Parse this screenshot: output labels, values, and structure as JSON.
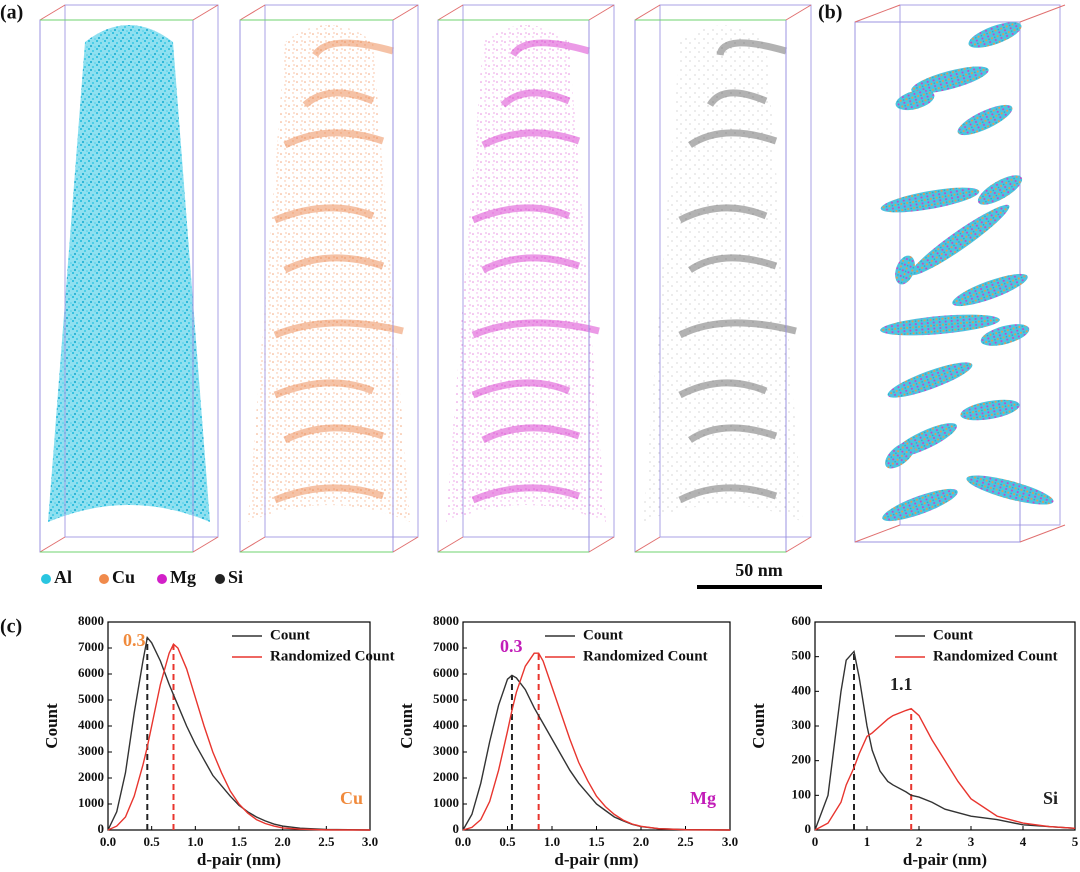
{
  "panel_labels": [
    "(a)",
    "(b)",
    "(c)"
  ],
  "element_legend": [
    {
      "name": "Al",
      "color": "#29c5e0"
    },
    {
      "name": "Cu",
      "color": "#f08a4b"
    },
    {
      "name": "Mg",
      "color": "#d21fc8"
    },
    {
      "name": "Si",
      "color": "#222222"
    }
  ],
  "scale_bar": "50 nm",
  "chart_data": [
    {
      "type": "line",
      "xlabel": "d-pair (nm)",
      "ylabel": "Count",
      "x": [
        0,
        0.1,
        0.2,
        0.3,
        0.4,
        0.45,
        0.5,
        0.6,
        0.7,
        0.75,
        0.8,
        0.9,
        1.0,
        1.1,
        1.2,
        1.3,
        1.4,
        1.5,
        1.6,
        1.7,
        1.8,
        1.9,
        2.0,
        2.2,
        2.5,
        3.0
      ],
      "series": [
        {
          "name": "Count",
          "color": "#333333",
          "values": [
            0,
            700,
            2200,
            4500,
            6500,
            7400,
            7200,
            6500,
            5600,
            5200,
            4800,
            4000,
            3300,
            2700,
            2100,
            1700,
            1300,
            950,
            700,
            500,
            350,
            230,
            150,
            70,
            20,
            0
          ]
        },
        {
          "name": "Randomized Count",
          "color": "#e8352e",
          "values": [
            0,
            150,
            500,
            1300,
            2500,
            3200,
            4000,
            5600,
            6800,
            7150,
            7000,
            6200,
            5100,
            4000,
            3000,
            2200,
            1500,
            1000,
            650,
            400,
            250,
            150,
            80,
            30,
            5,
            0
          ]
        }
      ],
      "xlim": [
        0,
        3
      ],
      "ylim": [
        0,
        8000
      ],
      "xticks": [
        {
          "value": 0,
          "label": "0.0"
        },
        0.5,
        {
          "value": 1,
          "label": "1.0"
        },
        1.5,
        {
          "value": 2,
          "label": "2.0"
        },
        2.5,
        {
          "value": 3,
          "label": "3.0"
        }
      ],
      "yticks": [
        0,
        1000,
        2000,
        3000,
        4000,
        5000,
        6000,
        7000,
        8000
      ],
      "vlines": [
        {
          "x": 0.45,
          "y": 7400,
          "color": "#222222"
        },
        {
          "x": 0.75,
          "y": 7150,
          "color": "#e8352e"
        }
      ],
      "annotations": [
        {
          "text": "0.3",
          "color": "#f08a3c"
        },
        {
          "text": "Cu",
          "color": "#f08a3c"
        }
      ]
    },
    {
      "type": "line",
      "xlabel": "d-pair (nm)",
      "ylabel": "Count",
      "x": [
        0,
        0.1,
        0.2,
        0.3,
        0.4,
        0.5,
        0.55,
        0.6,
        0.7,
        0.8,
        0.85,
        0.9,
        1.0,
        1.1,
        1.2,
        1.3,
        1.4,
        1.5,
        1.6,
        1.7,
        1.8,
        1.9,
        2.0,
        2.2,
        2.5,
        3.0
      ],
      "series": [
        {
          "name": "Count",
          "color": "#333333",
          "values": [
            0,
            600,
            1800,
            3400,
            4800,
            5800,
            5950,
            5850,
            5400,
            4700,
            4400,
            4100,
            3500,
            2900,
            2300,
            1800,
            1400,
            1000,
            750,
            500,
            350,
            220,
            130,
            50,
            15,
            0
          ]
        },
        {
          "name": "Randomized Count",
          "color": "#e8352e",
          "values": [
            0,
            100,
            400,
            1100,
            2300,
            3800,
            4600,
            5300,
            6300,
            6800,
            6800,
            6500,
            5500,
            4500,
            3500,
            2600,
            1900,
            1300,
            900,
            600,
            380,
            230,
            140,
            50,
            10,
            0
          ]
        }
      ],
      "xlim": [
        0,
        3
      ],
      "ylim": [
        0,
        8000
      ],
      "xticks": [
        {
          "value": 0,
          "label": "0.0"
        },
        0.5,
        {
          "value": 1,
          "label": "1.0"
        },
        1.5,
        {
          "value": 2,
          "label": "2.0"
        },
        2.5,
        {
          "value": 3,
          "label": "3.0"
        }
      ],
      "yticks": [
        0,
        1000,
        2000,
        3000,
        4000,
        5000,
        6000,
        7000,
        8000
      ],
      "vlines": [
        {
          "x": 0.55,
          "y": 5950,
          "color": "#222222"
        },
        {
          "x": 0.85,
          "y": 6800,
          "color": "#e8352e"
        }
      ],
      "annotations": [
        {
          "text": "0.3",
          "color": "#c21cb8"
        },
        {
          "text": "Mg",
          "color": "#c21cb8"
        }
      ]
    },
    {
      "type": "line",
      "xlabel": "d-pair (nm)",
      "ylabel": "Count",
      "x": [
        0,
        0.25,
        0.5,
        0.6,
        0.75,
        0.85,
        1.0,
        1.1,
        1.25,
        1.4,
        1.5,
        1.75,
        1.85,
        2.0,
        2.25,
        2.5,
        2.75,
        3.0,
        3.5,
        4.0,
        4.5,
        5.0
      ],
      "series": [
        {
          "name": "Count",
          "color": "#333333",
          "values": [
            0,
            100,
            400,
            490,
            515,
            440,
            300,
            230,
            170,
            140,
            130,
            110,
            100,
            95,
            80,
            60,
            50,
            40,
            30,
            15,
            10,
            5
          ]
        },
        {
          "name": "Randomized Count",
          "color": "#e8352e",
          "values": [
            0,
            20,
            80,
            130,
            180,
            220,
            270,
            280,
            300,
            320,
            330,
            345,
            350,
            330,
            260,
            200,
            140,
            90,
            40,
            20,
            10,
            5
          ]
        }
      ],
      "xlim": [
        0,
        5
      ],
      "ylim": [
        0,
        600
      ],
      "xticks": [
        0,
        1,
        2,
        3,
        4,
        5
      ],
      "yticks": [
        0,
        100,
        200,
        300,
        400,
        500,
        600
      ],
      "vlines": [
        {
          "x": 0.75,
          "y": 515,
          "color": "#222222"
        },
        {
          "x": 1.85,
          "y": 350,
          "color": "#e8352e"
        }
      ],
      "annotations": [
        {
          "text": "1.1",
          "color": "#222222"
        },
        {
          "text": "Si",
          "color": "#222222"
        }
      ]
    }
  ]
}
